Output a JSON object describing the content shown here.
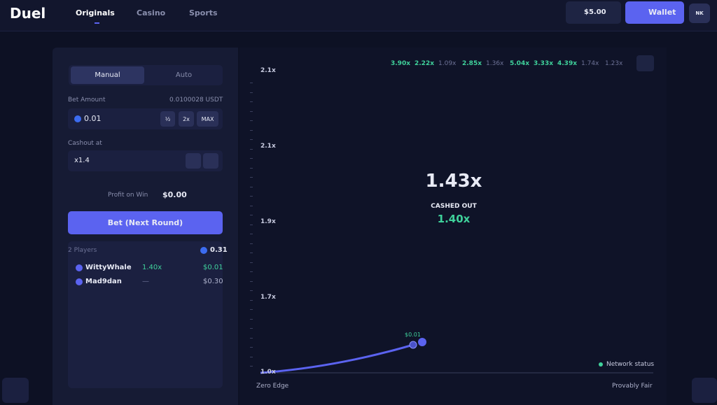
{
  "nav": {
    "logo": "Duel",
    "tabs": [
      "Originals",
      "Casino",
      "Sports"
    ],
    "balance": "$5.00",
    "wallet": "Wallet",
    "avatar": "NK"
  },
  "bet_panel": {
    "modes": [
      "Manual",
      "Auto"
    ],
    "bet_amount_label": "Bet Amount",
    "bet_amount_usdt": "0.0100028 USDT",
    "bet_value": "0.01",
    "bet_buttons": [
      "½",
      "2x",
      "MAX"
    ],
    "cashout_label": "Cashout at",
    "cashout_value": "x1.4",
    "profit_label": "Profit on Win",
    "profit_value": "$0.00",
    "bet_button": "Bet (Next Round)",
    "players_label": "2 Players",
    "players_total": "0.31",
    "players": [
      {
        "name": "WittyWhale",
        "multiplier": "1.40x",
        "amount": "$0.01"
      },
      {
        "name": "Mad9dan",
        "multiplier": "—",
        "amount": "$0.30"
      }
    ]
  },
  "game": {
    "history": [
      "3.90x",
      "2.22x",
      "1.09x",
      "2.85x",
      "1.36x",
      "5.04x",
      "3.33x",
      "4.39x",
      "1.74x",
      "1.23x"
    ],
    "y_axis": [
      "2.1x",
      "2.1x",
      "1.9x",
      "1.7x",
      "1.0x"
    ],
    "multiplier": "1.43x",
    "status": "CASHED OUT",
    "cashout": "1.40x",
    "marker_label": "$0.01",
    "network": "Network status",
    "zero_edge": "Zero Edge",
    "provably_fair": "Provably Fair"
  }
}
